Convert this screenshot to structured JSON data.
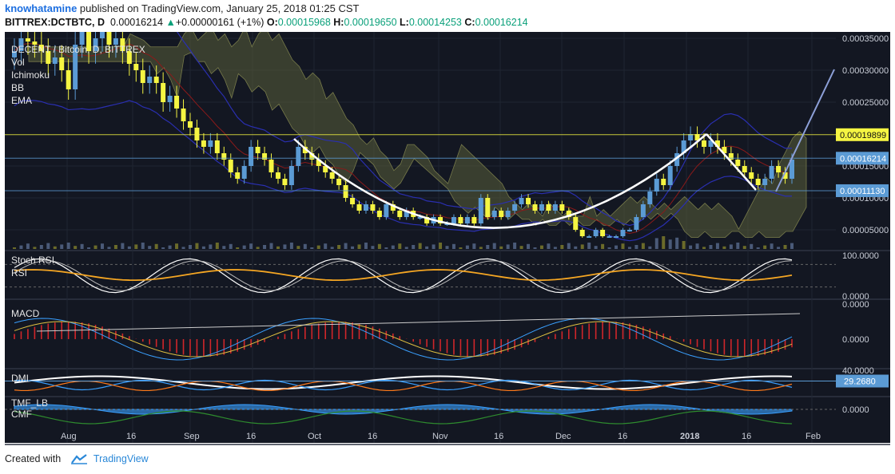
{
  "header": {
    "author": "knowhatamine",
    "published_text": "published on TradingView.com, January 25, 2018 01:25 CST",
    "symbol": "BITTREX:DCTBTC, D",
    "last": "0.00016214",
    "change": "+0.00000161 (+1%)",
    "o_label": "O:",
    "o": "0.00015968",
    "h_label": "H:",
    "h": "0.00019650",
    "l_label": "L:",
    "l": "0.00014253",
    "c_label": "C:",
    "c": "0.00016214"
  },
  "footer": {
    "created_with": "Created with",
    "brand": "TradingView"
  },
  "colors": {
    "background": "#131722",
    "grid": "#1f2531",
    "candle_up": "#5b9bd5",
    "candle_down": "#f5f542",
    "cloud": "#5a5e3a",
    "bb_band": "#2a2fb0",
    "ema": "#8b1a1a",
    "white_curve": "#ffffff",
    "stoch_k": "#ffffff",
    "rsi": "#f5a623",
    "macd_hist": "#d0262a",
    "dmi_adx": "#ffffff",
    "dmi_plus": "#3aa0ff",
    "dmi_minus": "#ff7a1a",
    "tmf": "#3aa0ff",
    "cmf": "#2e8b2e"
  },
  "chart_data": [
    {
      "type": "line",
      "title": "DECENT / Bitcoin, D, BITTREX",
      "legend": [
        "Vol",
        "Ichimoku",
        "BB",
        "EMA"
      ],
      "x_ticks": [
        "Aug",
        "16",
        "Sep",
        "16",
        "Oct",
        "16",
        "Nov",
        "16",
        "Dec",
        "16",
        "2018",
        "16",
        "Feb"
      ],
      "y_ticks": [
        "0.00035000",
        "0.00030000",
        "0.00025000",
        "0.00015000",
        "0.00010000",
        "0.00005000"
      ],
      "ylim": [
        2e-05,
        0.00036
      ],
      "price_labels": [
        {
          "label": "0.00019899",
          "value": 0.00019899,
          "color": "#f5f542"
        },
        {
          "label": "0.00016214",
          "value": 0.00016214,
          "color": "#5b9bd5"
        },
        {
          "label": "0.00011130",
          "value": 0.0001113,
          "color": "#5b9bd5"
        }
      ],
      "close_series": [
        0.00033,
        0.00035,
        0.000345,
        0.00034,
        0.00033,
        0.00031,
        0.00032,
        0.0003,
        0.00027,
        0.00034,
        0.00036,
        0.00033,
        0.00035,
        0.00036,
        0.00034,
        0.00035,
        0.00033,
        0.00031,
        0.0003,
        0.00028,
        0.00029,
        0.00028,
        0.00025,
        0.00026,
        0.00024,
        0.00022,
        0.00021,
        0.00019,
        0.00018,
        0.00019,
        0.00017,
        0.00016,
        0.00014,
        0.00013,
        0.00015,
        0.00018,
        0.00017,
        0.00016,
        0.00014,
        0.00013,
        0.00012,
        0.00015,
        0.00018,
        0.00017,
        0.00016,
        0.00015,
        0.00014,
        0.00013,
        0.00012,
        0.0001,
        9e-05,
        8e-05,
        9e-05,
        8e-05,
        7e-05,
        9e-05,
        8e-05,
        7e-05,
        8e-05,
        7e-05,
        7e-05,
        6e-05,
        7e-05,
        6e-05,
        6e-05,
        7e-05,
        6e-05,
        7e-05,
        6e-05,
        0.0001,
        7e-05,
        8e-05,
        7e-05,
        8e-05,
        9e-05,
        0.0001,
        9e-05,
        8e-05,
        9e-05,
        8e-05,
        9e-05,
        8e-05,
        7e-05,
        5e-05,
        4e-05,
        4e-05,
        5e-05,
        4e-05,
        4e-05,
        4e-05,
        5e-05,
        5e-05,
        7e-05,
        9e-05,
        0.00011,
        0.00013,
        0.00012,
        0.00015,
        0.00017,
        0.00019,
        0.0002,
        0.00019,
        0.00018,
        0.00019,
        0.00018,
        0.00017,
        0.00016,
        0.00015,
        0.00014,
        0.00013,
        0.00012,
        0.00013,
        0.00015,
        0.00014,
        0.00013,
        0.00016
      ]
    },
    {
      "type": "line",
      "title": "Stoch RSI",
      "legend": [
        "RSI"
      ],
      "y_ticks": [
        "100.0000",
        "0.0000"
      ],
      "ylim": [
        0,
        100
      ]
    },
    {
      "type": "bar",
      "title": "MACD",
      "y_ticks": [
        "0.0000",
        "0.0000"
      ]
    },
    {
      "type": "line",
      "title": "DMI",
      "y_ticks": [
        "40.0000"
      ],
      "price_labels": [
        {
          "label": "29.2680",
          "value": 29.268
        }
      ]
    },
    {
      "type": "area",
      "title": "TMF_LB",
      "legend": [
        "CMF"
      ],
      "y_ticks": [
        "0.0000"
      ]
    }
  ]
}
